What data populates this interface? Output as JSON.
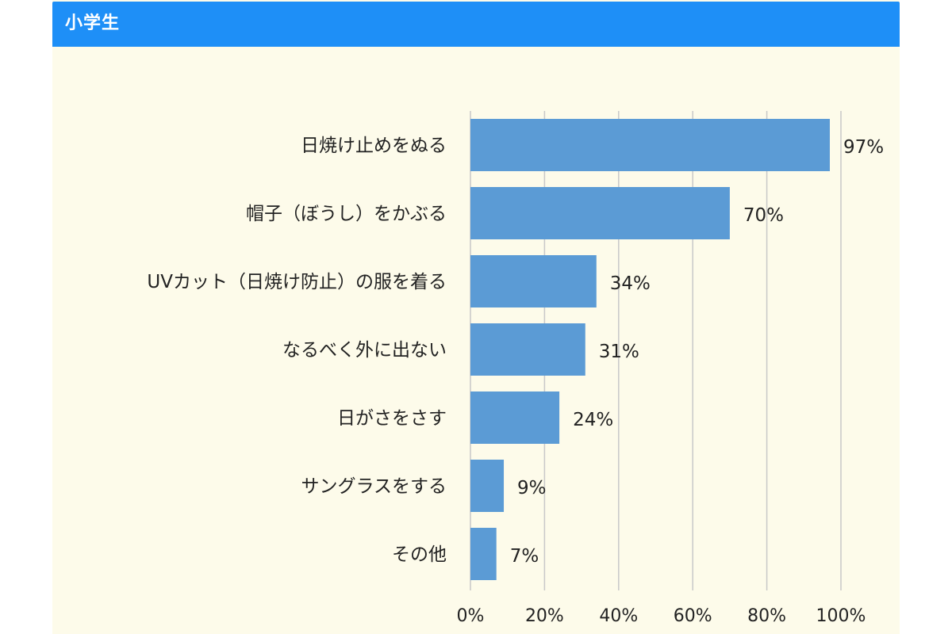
{
  "header": {
    "title": "小学生"
  },
  "colors": {
    "header": "#1e8ff7",
    "background": "#fdfbea",
    "bar": "#5b9bd5",
    "grid": "#c8c8c8"
  },
  "chart_data": {
    "type": "bar",
    "orientation": "horizontal",
    "categories": [
      "日焼け止めをぬる",
      "帽子（ぼうし）をかぶる",
      "UVカット（日焼け防止）の服を着る",
      "なるべく外に出ない",
      "日がさをさす",
      "サングラスをする",
      "その他"
    ],
    "values": [
      97,
      70,
      34,
      31,
      24,
      9,
      7
    ],
    "value_labels": [
      "97%",
      "70%",
      "34%",
      "31%",
      "24%",
      "9%",
      "7%"
    ],
    "x_ticks": [
      "0%",
      "20%",
      "40%",
      "60%",
      "80%",
      "100%"
    ],
    "xlim": [
      0,
      100
    ],
    "grid": true
  }
}
